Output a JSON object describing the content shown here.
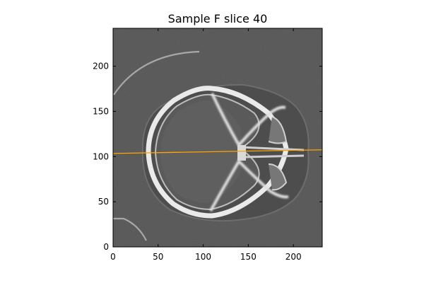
{
  "chart_data": {
    "type": "image",
    "title": "Sample F slice 40",
    "xlabel": "",
    "ylabel": "",
    "xlim": [
      0,
      232
    ],
    "ylim": [
      0,
      242
    ],
    "x_ticks": [
      {
        "value": 0,
        "label": "0"
      },
      {
        "value": 50,
        "label": "50"
      },
      {
        "value": 100,
        "label": "100"
      },
      {
        "value": 150,
        "label": "150"
      },
      {
        "value": 200,
        "label": "200"
      }
    ],
    "y_ticks": [
      {
        "value": 0,
        "label": "0"
      },
      {
        "value": 50,
        "label": "50"
      },
      {
        "value": 100,
        "label": "100"
      },
      {
        "value": 150,
        "label": "150"
      },
      {
        "value": 200,
        "label": "200"
      }
    ],
    "grid": false,
    "legend": "none",
    "image_content": "axial CT slice of a skull (grayscale)",
    "overlay_line": {
      "color": "#ffa500",
      "x": [
        0,
        232
      ],
      "y": [
        103.5,
        107.5
      ]
    },
    "colors": {
      "background": "#555555",
      "bone": "#f0f0f0"
    }
  }
}
